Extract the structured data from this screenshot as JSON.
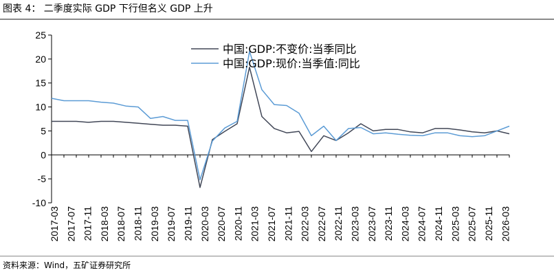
{
  "header": {
    "figure_title": "图表 4：  二季度实际 GDP 下行但名义 GDP 上升"
  },
  "footer": {
    "source": "资料来源：Wind，五矿证券研究所"
  },
  "colors": {
    "series_real": "#404656",
    "series_nominal": "#5b9bd5",
    "axis": "#000000"
  },
  "chart_data": {
    "type": "line",
    "title": "",
    "xlabel": "",
    "ylabel": "",
    "ylim": [
      -10,
      25
    ],
    "yticks": [
      -10,
      -5,
      0,
      5,
      10,
      15,
      20,
      25
    ],
    "grid": false,
    "legend_position": "top-center",
    "x": [
      "2017-03",
      "2017-06",
      "2017-09",
      "2017-12",
      "2018-03",
      "2018-06",
      "2018-09",
      "2018-12",
      "2019-03",
      "2019-06",
      "2019-09",
      "2019-12",
      "2020-03",
      "2020-06",
      "2020-09",
      "2020-12",
      "2021-03",
      "2021-06",
      "2021-09",
      "2021-12",
      "2022-03",
      "2022-06",
      "2022-09",
      "2022-12",
      "2023-03",
      "2023-06",
      "2023-09",
      "2023-12",
      "2024-03",
      "2024-06",
      "2024-09",
      "2024-12",
      "2025-03",
      "2025-06",
      "2025-09",
      "2025-12",
      "2026-03",
      "2026-06"
    ],
    "x_tick_labels": [
      "2017-03",
      "2017-07",
      "2017-11",
      "2018-03",
      "2018-07",
      "2018-11",
      "2019-03",
      "2019-07",
      "2019-11",
      "2020-03",
      "2020-07",
      "2020-11",
      "2021-03",
      "2021-07",
      "2021-11",
      "2022-03",
      "2022-07",
      "2022-11",
      "2023-03",
      "2023-07",
      "2023-11",
      "2024-03",
      "2024-07",
      "2024-11",
      "2025-03",
      "2025-07",
      "2025-11",
      "2026-03"
    ],
    "series": [
      {
        "name": "中国:GDP:不变价:当季同比",
        "color": "#404656",
        "values": [
          7.0,
          7.0,
          7.0,
          6.8,
          7.0,
          7.0,
          6.8,
          6.6,
          6.4,
          6.2,
          6.2,
          6.0,
          -6.8,
          3.2,
          4.9,
          6.5,
          18.3,
          8.0,
          5.5,
          4.6,
          4.9,
          0.7,
          4.0,
          3.0,
          4.6,
          6.5,
          5.0,
          5.3,
          5.3,
          4.8,
          4.6,
          5.5,
          5.5,
          5.2,
          4.8,
          4.6,
          5.0,
          4.4
        ]
      },
      {
        "name": "中国:GDP:现价:当季值:同比",
        "color": "#5b9bd5",
        "values": [
          11.8,
          11.3,
          11.3,
          11.3,
          11.0,
          10.8,
          10.2,
          10.0,
          7.6,
          8.0,
          7.2,
          7.2,
          -5.2,
          2.9,
          5.6,
          7.0,
          21.6,
          13.6,
          10.5,
          10.3,
          8.7,
          4.0,
          6.0,
          3.0,
          5.5,
          5.7,
          4.4,
          4.6,
          4.3,
          4.1,
          4.0,
          4.6,
          4.6,
          4.0,
          3.8,
          4.0,
          5.0,
          6.0
        ]
      }
    ]
  }
}
